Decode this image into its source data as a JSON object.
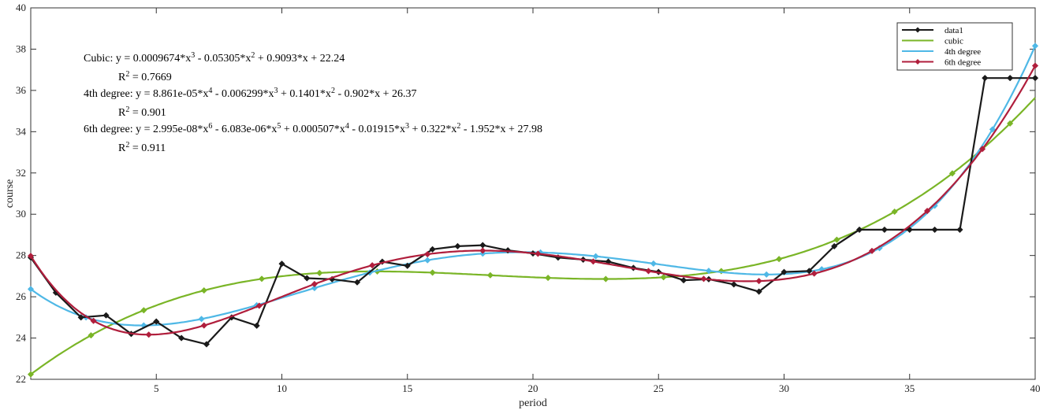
{
  "chart_data": {
    "type": "line",
    "title": "",
    "xlabel": "period",
    "ylabel": "course",
    "xlim": [
      0,
      40
    ],
    "ylim": [
      22,
      40
    ],
    "xticks": [
      5,
      10,
      15,
      20,
      25,
      30,
      35,
      40
    ],
    "yticks": [
      22,
      24,
      26,
      28,
      30,
      32,
      34,
      36,
      38,
      40
    ],
    "grid": false,
    "legend_position": "top-right",
    "annotations": [
      {
        "prefix": "Cubic:  y = 0.0009674*x",
        "s1": "3",
        "m1": " - 0.05305*x",
        "s2": "2",
        "m2": " + 0.9093*x + 22.24"
      },
      {
        "prefix": "R",
        "s1": "2",
        "m1": " = 0.7669"
      },
      {
        "prefix": "4th degree:  y = 8.861e-05*x",
        "s1": "4",
        "m1": " - 0.006299*x",
        "s2": "3",
        "m2": " + 0.1401*x",
        "s3": "2",
        "m3": " - 0.902*x + 26.37"
      },
      {
        "prefix": "R",
        "s1": "2",
        "m1": " = 0.901"
      },
      {
        "prefix": "6th degree:  y = 2.995e-08*x",
        "s1": "6",
        "m1": " - 6.083e-06*x",
        "s2": "5",
        "m2": " + 0.000507*x",
        "s3": "4",
        "m3": " - 0.01915*x",
        "s4": "3",
        "m4": " + 0.322*x",
        "s5": "2",
        "m5": " - 1.952*x + 27.98"
      },
      {
        "prefix": "R",
        "s1": "2",
        "m1": " = 0.911"
      }
    ],
    "series": [
      {
        "name": "data1",
        "color": "#1a1a1a",
        "marker": "diamond",
        "x": [
          0,
          1,
          2,
          3,
          4,
          5,
          6,
          7,
          8,
          9,
          10,
          11,
          12,
          13,
          14,
          15,
          16,
          17,
          18,
          19,
          20,
          21,
          22,
          23,
          24,
          25,
          26,
          27,
          28,
          29,
          30,
          31,
          32,
          33,
          34,
          35,
          36,
          37,
          38,
          39,
          40
        ],
        "y": [
          27.9,
          26.2,
          25.0,
          25.1,
          24.2,
          24.8,
          24.0,
          23.7,
          25.0,
          24.6,
          27.6,
          26.9,
          26.85,
          26.7,
          27.7,
          27.5,
          28.3,
          28.45,
          28.5,
          28.25,
          28.1,
          27.9,
          27.8,
          27.7,
          27.4,
          27.2,
          26.8,
          26.85,
          26.6,
          26.25,
          27.2,
          27.25,
          28.45,
          29.25,
          29.25,
          29.25,
          29.25,
          29.25,
          36.6,
          36.6,
          36.6
        ]
      },
      {
        "name": "cubic",
        "color": "#7ab527",
        "marker": "diamond",
        "marker_x": [
          0,
          2.4,
          4.5,
          6.9,
          9.2,
          11.5,
          13.8,
          16,
          18.3,
          20.6,
          22.9,
          25.2,
          27.5,
          29.8,
          32.1,
          34.4,
          36.7,
          39
        ],
        "coefficients": [
          0.0009674,
          -0.05305,
          0.9093,
          22.24
        ]
      },
      {
        "name": "4th degree",
        "color": "#4fb8e6",
        "marker": "diamond",
        "marker_x": [
          0,
          2.2,
          4.5,
          6.8,
          9,
          11.3,
          13.5,
          15.8,
          18,
          20.3,
          22.5,
          24.8,
          27,
          29.3,
          31.5,
          33.8,
          36,
          38.3,
          40
        ],
        "coefficients": [
          8.861e-05,
          -0.006299,
          0.1401,
          -0.902,
          26.37
        ]
      },
      {
        "name": "6th degree",
        "color": "#b01e3c",
        "marker": "diamond",
        "marker_x": [
          0,
          2.5,
          4.7,
          6.9,
          9.1,
          11.3,
          13.6,
          15.8,
          18,
          20.2,
          22.4,
          24.6,
          26.8,
          29,
          31.2,
          33.5,
          35.7,
          37.9,
          40
        ],
        "coefficients": [
          2.995e-08,
          -6.083e-06,
          0.000507,
          -0.01915,
          0.322,
          -1.952,
          27.98
        ]
      }
    ]
  }
}
